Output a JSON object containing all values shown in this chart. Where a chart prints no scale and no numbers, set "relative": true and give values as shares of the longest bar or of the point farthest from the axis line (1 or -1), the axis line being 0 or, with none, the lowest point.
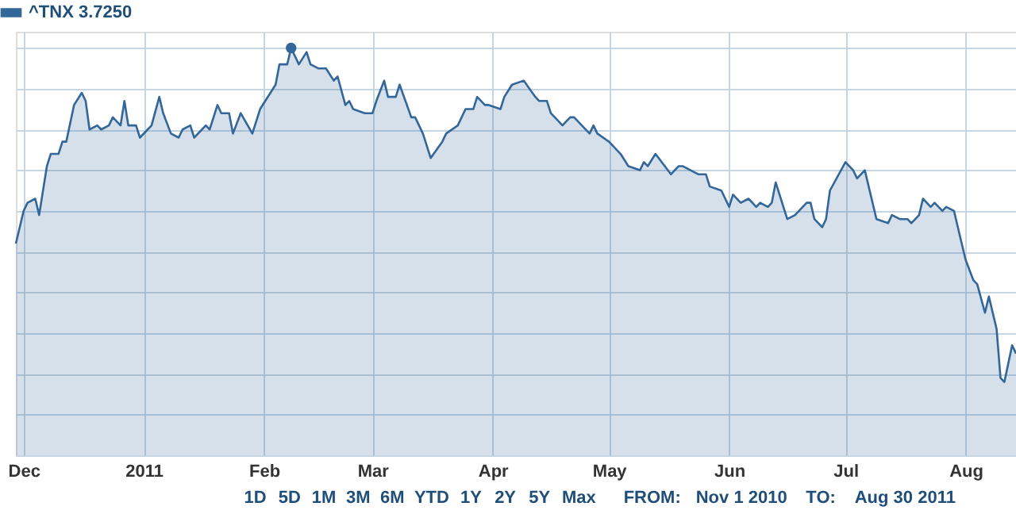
{
  "chart_data": {
    "type": "area",
    "relative": true,
    "grid": true,
    "legend": "top left",
    "xlim": [
      "2010-11-29",
      "2011-08-14"
    ],
    "xticks": [
      {
        "value": "2010-12-01",
        "label": "Dec"
      },
      {
        "value": "2011-01-01",
        "label": "2011"
      },
      {
        "value": "2011-02-01",
        "label": "Feb"
      },
      {
        "value": "2011-03-01",
        "label": "Mar"
      },
      {
        "value": "2011-04-01",
        "label": "Apr"
      },
      {
        "value": "2011-05-01",
        "label": "May"
      },
      {
        "value": "2011-06-01",
        "label": "Jun"
      },
      {
        "value": "2011-07-01",
        "label": "Jul"
      },
      {
        "value": "2011-08-01",
        "label": "Aug"
      }
    ],
    "annotations": [
      "1D",
      "5D",
      "1M",
      "3M",
      "6M",
      "YTD",
      "1Y",
      "2Y",
      "5Y",
      "Max",
      "FROM:",
      "Nov 1 2010",
      "TO:",
      "Aug 30 2011"
    ],
    "series": [
      {
        "name": "^TNX 3.7250",
        "color": "#336699",
        "x": [
          "2010-11-29",
          "2010-12-01",
          "2010-12-02",
          "2010-12-04",
          "2010-12-05",
          "2010-12-07",
          "2010-12-08",
          "2010-12-10",
          "2010-12-11",
          "2010-12-12",
          "2010-12-14",
          "2010-12-16",
          "2010-12-17",
          "2010-12-18",
          "2010-12-20",
          "2010-12-21",
          "2010-12-23",
          "2010-12-24",
          "2010-12-26",
          "2010-12-27",
          "2010-12-28",
          "2010-12-30",
          "2010-12-31",
          "2011-01-02",
          "2011-01-03",
          "2011-01-05",
          "2011-01-06",
          "2011-01-08",
          "2011-01-10",
          "2011-01-11",
          "2011-01-13",
          "2011-01-14",
          "2011-01-17",
          "2011-01-18",
          "2011-01-20",
          "2011-01-21",
          "2011-01-23",
          "2011-01-24",
          "2011-01-26",
          "2011-01-29",
          "2011-01-31",
          "2011-02-04",
          "2011-02-05",
          "2011-02-07",
          "2011-02-08",
          "2011-02-10",
          "2011-02-12",
          "2011-02-13",
          "2011-02-15",
          "2011-02-17",
          "2011-02-19",
          "2011-02-20",
          "2011-02-22",
          "2011-02-23",
          "2011-02-24",
          "2011-02-27",
          "2011-03-01",
          "2011-03-02",
          "2011-03-04",
          "2011-03-05",
          "2011-03-07",
          "2011-03-08",
          "2011-03-11",
          "2011-03-12",
          "2011-03-14",
          "2011-03-16",
          "2011-03-19",
          "2011-03-20",
          "2011-03-23",
          "2011-03-25",
          "2011-03-27",
          "2011-03-28",
          "2011-03-30",
          "2011-03-31",
          "2011-04-03",
          "2011-04-04",
          "2011-04-06",
          "2011-04-09",
          "2011-04-12",
          "2011-04-13",
          "2011-04-15",
          "2011-04-16",
          "2011-04-18",
          "2011-04-19",
          "2011-04-21",
          "2011-04-22",
          "2011-04-26",
          "2011-04-27",
          "2011-04-28",
          "2011-05-01",
          "2011-05-04",
          "2011-05-06",
          "2011-05-09",
          "2011-05-10",
          "2011-05-11",
          "2011-05-13",
          "2011-05-17",
          "2011-05-19",
          "2011-05-20",
          "2011-05-24",
          "2011-05-26",
          "2011-05-27",
          "2011-05-30",
          "2011-06-01",
          "2011-06-02",
          "2011-06-04",
          "2011-06-06",
          "2011-06-08",
          "2011-06-09",
          "2011-06-11",
          "2011-06-12",
          "2011-06-13",
          "2011-06-15",
          "2011-06-16",
          "2011-06-18",
          "2011-06-21",
          "2011-06-22",
          "2011-06-23",
          "2011-06-25",
          "2011-06-26",
          "2011-06-27",
          "2011-07-01",
          "2011-07-03",
          "2011-07-04",
          "2011-07-06",
          "2011-07-09",
          "2011-07-12",
          "2011-07-13",
          "2011-07-15",
          "2011-07-17",
          "2011-07-18",
          "2011-07-20",
          "2011-07-21",
          "2011-07-23",
          "2011-07-24",
          "2011-07-26",
          "2011-07-27",
          "2011-07-29",
          "2011-07-31",
          "2011-08-01",
          "2011-08-03",
          "2011-08-04",
          "2011-08-06",
          "2011-08-07",
          "2011-08-09",
          "2011-08-10",
          "2011-08-11",
          "2011-08-13",
          "2011-08-14"
        ],
        "values": [
          0.52,
          0.6,
          0.62,
          0.63,
          0.59,
          0.71,
          0.74,
          0.74,
          0.77,
          0.77,
          0.86,
          0.89,
          0.87,
          0.8,
          0.81,
          0.8,
          0.81,
          0.83,
          0.81,
          0.87,
          0.81,
          0.81,
          0.78,
          0.8,
          0.81,
          0.88,
          0.84,
          0.79,
          0.78,
          0.8,
          0.81,
          0.78,
          0.81,
          0.8,
          0.86,
          0.84,
          0.84,
          0.79,
          0.84,
          0.79,
          0.85,
          0.91,
          0.96,
          0.96,
          1.0,
          0.96,
          0.99,
          0.96,
          0.95,
          0.95,
          0.92,
          0.93,
          0.86,
          0.87,
          0.85,
          0.84,
          0.84,
          0.87,
          0.92,
          0.88,
          0.88,
          0.91,
          0.83,
          0.83,
          0.79,
          0.73,
          0.77,
          0.79,
          0.81,
          0.85,
          0.85,
          0.88,
          0.86,
          0.86,
          0.85,
          0.88,
          0.91,
          0.92,
          0.88,
          0.87,
          0.87,
          0.84,
          0.82,
          0.81,
          0.83,
          0.83,
          0.79,
          0.81,
          0.79,
          0.77,
          0.74,
          0.71,
          0.7,
          0.72,
          0.71,
          0.74,
          0.69,
          0.71,
          0.71,
          0.69,
          0.69,
          0.66,
          0.65,
          0.61,
          0.64,
          0.62,
          0.63,
          0.61,
          0.62,
          0.61,
          0.62,
          0.67,
          0.61,
          0.58,
          0.59,
          0.62,
          0.62,
          0.58,
          0.56,
          0.58,
          0.65,
          0.72,
          0.7,
          0.68,
          0.7,
          0.58,
          0.57,
          0.59,
          0.58,
          0.58,
          0.57,
          0.59,
          0.63,
          0.61,
          0.62,
          0.6,
          0.61,
          0.6,
          0.52,
          0.48,
          0.43,
          0.42,
          0.35,
          0.39,
          0.31,
          0.19,
          0.18,
          0.27,
          0.25
        ]
      },
      {
        "color": "#336699",
        "type": "scatter",
        "marker": "circle",
        "x": [
          "2011-02-08"
        ],
        "values": [
          1.0
        ]
      }
    ]
  }
}
